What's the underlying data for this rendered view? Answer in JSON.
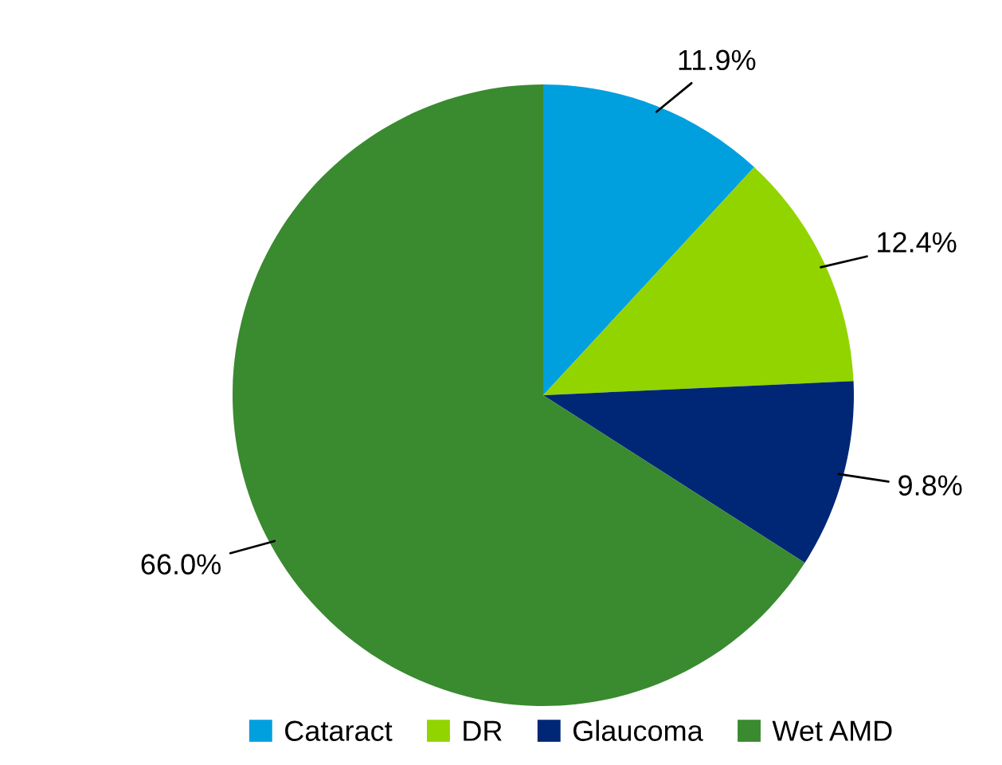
{
  "chart_data": {
    "type": "pie",
    "categories": [
      "Cataract",
      "DR",
      "Glaucoma",
      "Wet AMD"
    ],
    "values": [
      11.9,
      12.4,
      9.8,
      66.0
    ],
    "value_labels": [
      "11.9%",
      "12.4%",
      "9.8%",
      "66.0%"
    ],
    "colors": [
      "#00a0df",
      "#92d400",
      "#002776",
      "#3a8a30"
    ],
    "legend": "bottom"
  }
}
